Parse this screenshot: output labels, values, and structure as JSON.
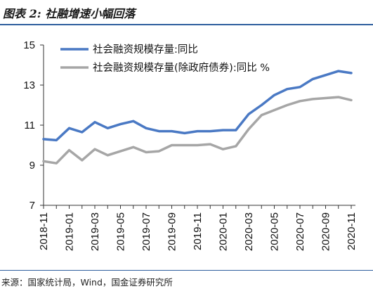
{
  "header": {
    "title": "图表 2:",
    "subtitle": "社融增速小幅回落"
  },
  "footer": {
    "source": "来源：国家统计局，Wind，国金证券研究所"
  },
  "colors": {
    "series1": "#4a79c4",
    "series2": "#a6a6a6",
    "rule": "#2f5f9e"
  },
  "chart_data": {
    "type": "line",
    "title": "",
    "xlabel": "",
    "ylabel": "",
    "ylim": [
      7,
      15
    ],
    "yticks": [
      "7",
      "9",
      "11",
      "13",
      "15"
    ],
    "x": [
      "2018-11",
      "2018-12",
      "2019-01",
      "2019-02",
      "2019-03",
      "2019-04",
      "2019-05",
      "2019-06",
      "2019-07",
      "2019-08",
      "2019-09",
      "2019-10",
      "2019-11",
      "2019-12",
      "2020-01",
      "2020-02",
      "2020-03",
      "2020-04",
      "2020-05",
      "2020-06",
      "2020-07",
      "2020-08",
      "2020-09",
      "2020-10",
      "2020-11"
    ],
    "xtick_labels": [
      "2018-11",
      "2019-01",
      "2019-03",
      "2019-05",
      "2019-07",
      "2019-09",
      "2019-11",
      "2020-01",
      "2020-03",
      "2020-05",
      "2020-07",
      "2020-09",
      "2020-11"
    ],
    "legend_position": "top",
    "series": [
      {
        "name": "社会融资规模存量:同比",
        "color": "#4a79c4",
        "values": [
          10.3,
          10.25,
          10.85,
          10.65,
          11.15,
          10.85,
          11.05,
          11.2,
          10.85,
          10.7,
          10.7,
          10.6,
          10.7,
          10.7,
          10.75,
          10.75,
          11.55,
          12.0,
          12.5,
          12.8,
          12.9,
          13.3,
          13.5,
          13.7,
          13.6
        ]
      },
      {
        "name": "社会融资规模存量(除政府债券):同比 %",
        "color": "#a6a6a6",
        "values": [
          9.2,
          9.1,
          9.75,
          9.25,
          9.8,
          9.5,
          9.7,
          9.9,
          9.65,
          9.7,
          10.0,
          10.0,
          10.0,
          10.05,
          9.8,
          9.95,
          10.8,
          11.5,
          11.75,
          12.0,
          12.2,
          12.3,
          12.35,
          12.4,
          12.25
        ]
      }
    ]
  }
}
